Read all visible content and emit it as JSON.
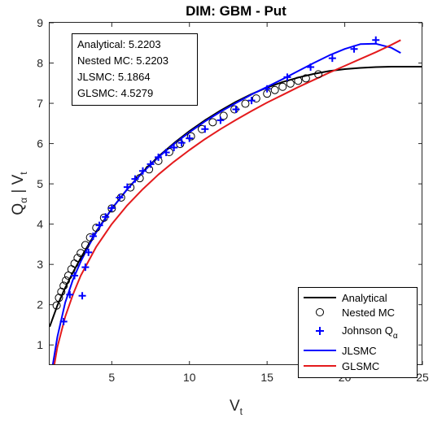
{
  "chart_data": {
    "type": "line",
    "title": "DIM: GBM - Put",
    "xlabel": {
      "main": "V",
      "sub": "t"
    },
    "ylabel": {
      "main": "Q",
      "sub1": "α",
      "sep": " | V",
      "sub2": "t"
    },
    "xlim": [
      1,
      25
    ],
    "ylim": [
      0.5,
      9
    ],
    "xticks": [
      5,
      10,
      15,
      20,
      25
    ],
    "yticks": [
      1,
      2,
      3,
      4,
      5,
      6,
      7,
      8,
      9
    ],
    "grid": false,
    "legend_position": "bottom-right",
    "annotation": [
      {
        "label": "Analytical: ",
        "value": "5.2203"
      },
      {
        "label": "Nested MC: ",
        "value": "5.2203"
      },
      {
        "label": "JLSMC: ",
        "value": "5.1864"
      },
      {
        "label": "GLSMC: ",
        "value": "4.5279"
      }
    ],
    "series": [
      {
        "name": "Analytical",
        "kind": "line",
        "color": "#000000",
        "x": [
          1.0,
          1.5,
          2.0,
          2.5,
          3.0,
          4.0,
          5.0,
          6.0,
          7.0,
          8.0,
          9.0,
          10.0,
          11.0,
          12.0,
          13.0,
          14.0,
          15.0,
          16.0,
          17.0,
          18.0,
          19.0,
          20.0,
          21.0,
          22.0,
          23.0,
          24.0,
          25.0
        ],
        "y": [
          1.45,
          1.98,
          2.42,
          2.8,
          3.16,
          3.82,
          4.38,
          4.87,
          5.3,
          5.68,
          6.01,
          6.31,
          6.58,
          6.82,
          7.04,
          7.23,
          7.39,
          7.53,
          7.64,
          7.73,
          7.8,
          7.85,
          7.88,
          7.9,
          7.91,
          7.91,
          7.91
        ]
      },
      {
        "name": "Nested MC",
        "kind": "circle",
        "color": "#000000",
        "x": [
          1.45,
          1.6,
          1.75,
          1.9,
          2.05,
          2.2,
          2.4,
          2.6,
          2.8,
          3.0,
          3.3,
          3.6,
          4.0,
          4.5,
          5.0,
          5.6,
          6.2,
          6.8,
          7.4,
          8.0,
          8.7,
          9.4,
          10.1,
          10.8,
          11.5,
          12.2,
          12.9,
          13.6,
          14.3,
          15.0,
          15.5,
          16.0,
          16.5,
          17.0,
          17.5,
          18.3
        ],
        "y": [
          1.98,
          2.17,
          2.32,
          2.47,
          2.6,
          2.72,
          2.88,
          3.02,
          3.16,
          3.28,
          3.48,
          3.67,
          3.91,
          4.16,
          4.39,
          4.66,
          4.91,
          5.14,
          5.36,
          5.57,
          5.79,
          5.99,
          6.18,
          6.36,
          6.53,
          6.69,
          6.85,
          6.99,
          7.12,
          7.24,
          7.33,
          7.41,
          7.49,
          7.56,
          7.62,
          7.72
        ]
      },
      {
        "name": "Johnson Q",
        "name_sub": "α",
        "kind": "plus",
        "color": "#0000ff",
        "x": [
          1.9,
          2.3,
          2.6,
          3.1,
          3.3,
          3.5,
          3.8,
          4.2,
          4.6,
          5.0,
          5.5,
          6.0,
          6.5,
          7.0,
          7.5,
          8.0,
          8.5,
          9.0,
          9.5,
          10.0,
          11.0,
          12.0,
          13.0,
          14.0,
          15.0,
          16.3,
          17.8,
          19.2,
          20.6,
          22.0
        ],
        "y": [
          1.58,
          2.25,
          2.72,
          2.22,
          2.93,
          3.3,
          3.7,
          3.97,
          4.18,
          4.4,
          4.66,
          4.92,
          5.12,
          5.32,
          5.49,
          5.66,
          5.78,
          5.9,
          6.02,
          6.13,
          6.36,
          6.58,
          6.85,
          7.07,
          7.36,
          7.65,
          7.9,
          8.12,
          8.35,
          8.57
        ]
      },
      {
        "name": "JLSMC",
        "kind": "line",
        "color": "#0000ff",
        "x": [
          1.2,
          1.5,
          2.0,
          2.5,
          3.0,
          3.5,
          4.0,
          5.0,
          6.0,
          7.0,
          8.0,
          9.0,
          10.0,
          11.0,
          12.0,
          13.0,
          14.0,
          15.0,
          16.0,
          17.0,
          18.0,
          19.0,
          20.0,
          21.0,
          22.0,
          23.0,
          23.6
        ],
        "y": [
          0.5,
          1.2,
          2.05,
          2.62,
          3.07,
          3.45,
          3.8,
          4.38,
          4.87,
          5.29,
          5.66,
          5.99,
          6.28,
          6.55,
          6.79,
          7.01,
          7.22,
          7.41,
          7.6,
          7.8,
          8.0,
          8.19,
          8.35,
          8.47,
          8.48,
          8.38,
          8.25
        ]
      },
      {
        "name": "GLSMC",
        "kind": "line",
        "color": "#e41a1c",
        "x": [
          1.3,
          1.5,
          2.0,
          2.5,
          3.0,
          4.0,
          5.0,
          6.0,
          7.0,
          8.0,
          9.0,
          10.0,
          11.0,
          12.0,
          13.0,
          14.0,
          15.0,
          16.0,
          17.0,
          18.0,
          19.0,
          20.0,
          21.0,
          22.0,
          23.0,
          23.6
        ],
        "y": [
          0.5,
          0.95,
          1.7,
          2.25,
          2.72,
          3.44,
          4.0,
          4.47,
          4.87,
          5.23,
          5.55,
          5.84,
          6.11,
          6.36,
          6.59,
          6.81,
          7.02,
          7.21,
          7.4,
          7.58,
          7.76,
          7.93,
          8.1,
          8.27,
          8.45,
          8.57
        ]
      }
    ]
  }
}
